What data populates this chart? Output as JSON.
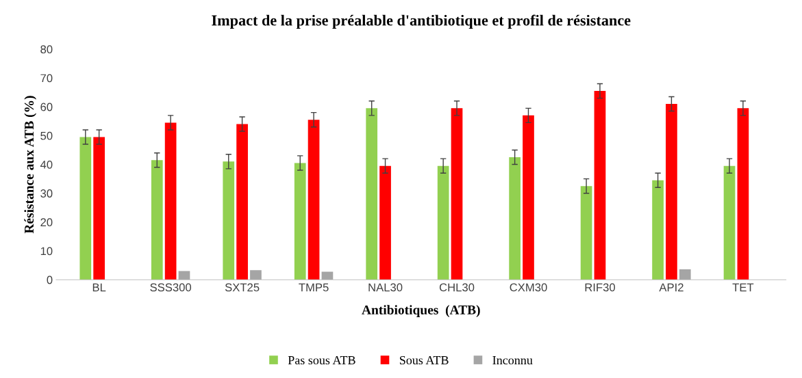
{
  "chart_data": {
    "type": "bar",
    "title": "Impact de la prise préalable d'antibiotique et profil de résistance",
    "xlabel": "Antibiotiques  (ATB)",
    "ylabel": "Résistance aux ATB (%)",
    "categories": [
      "BL",
      "SSS300",
      "SXT25",
      "TMP5",
      "NAL30",
      "CHL30",
      "CXM30",
      "RIF30",
      "API2",
      "TET"
    ],
    "series": [
      {
        "name": "Pas sous ATB",
        "color": "#92d050",
        "values": [
          49.5,
          41.5,
          41,
          40.5,
          59.5,
          39.5,
          42.5,
          32.5,
          34.5,
          39.5
        ],
        "errors": [
          2.5,
          2.5,
          2.5,
          2.5,
          2.5,
          2.5,
          2.5,
          2.5,
          2.5,
          2.5
        ]
      },
      {
        "name": "Sous ATB",
        "color": "#ff0000",
        "values": [
          49.5,
          54.5,
          54,
          55.5,
          39.5,
          59.5,
          57,
          65.5,
          61,
          59.5
        ],
        "errors": [
          2.5,
          2.5,
          2.5,
          2.5,
          2.5,
          2.5,
          2.5,
          2.5,
          2.5,
          2.5
        ]
      },
      {
        "name": "Inconnu",
        "color": "#a5a5a5",
        "values": [
          null,
          3,
          3.3,
          2.8,
          null,
          null,
          null,
          null,
          3.6,
          null
        ]
      }
    ],
    "ylim": [
      0,
      80
    ],
    "yticks": [
      0,
      10,
      20,
      30,
      40,
      50,
      60,
      70,
      80
    ],
    "grid": false,
    "legend": "bottom"
  }
}
